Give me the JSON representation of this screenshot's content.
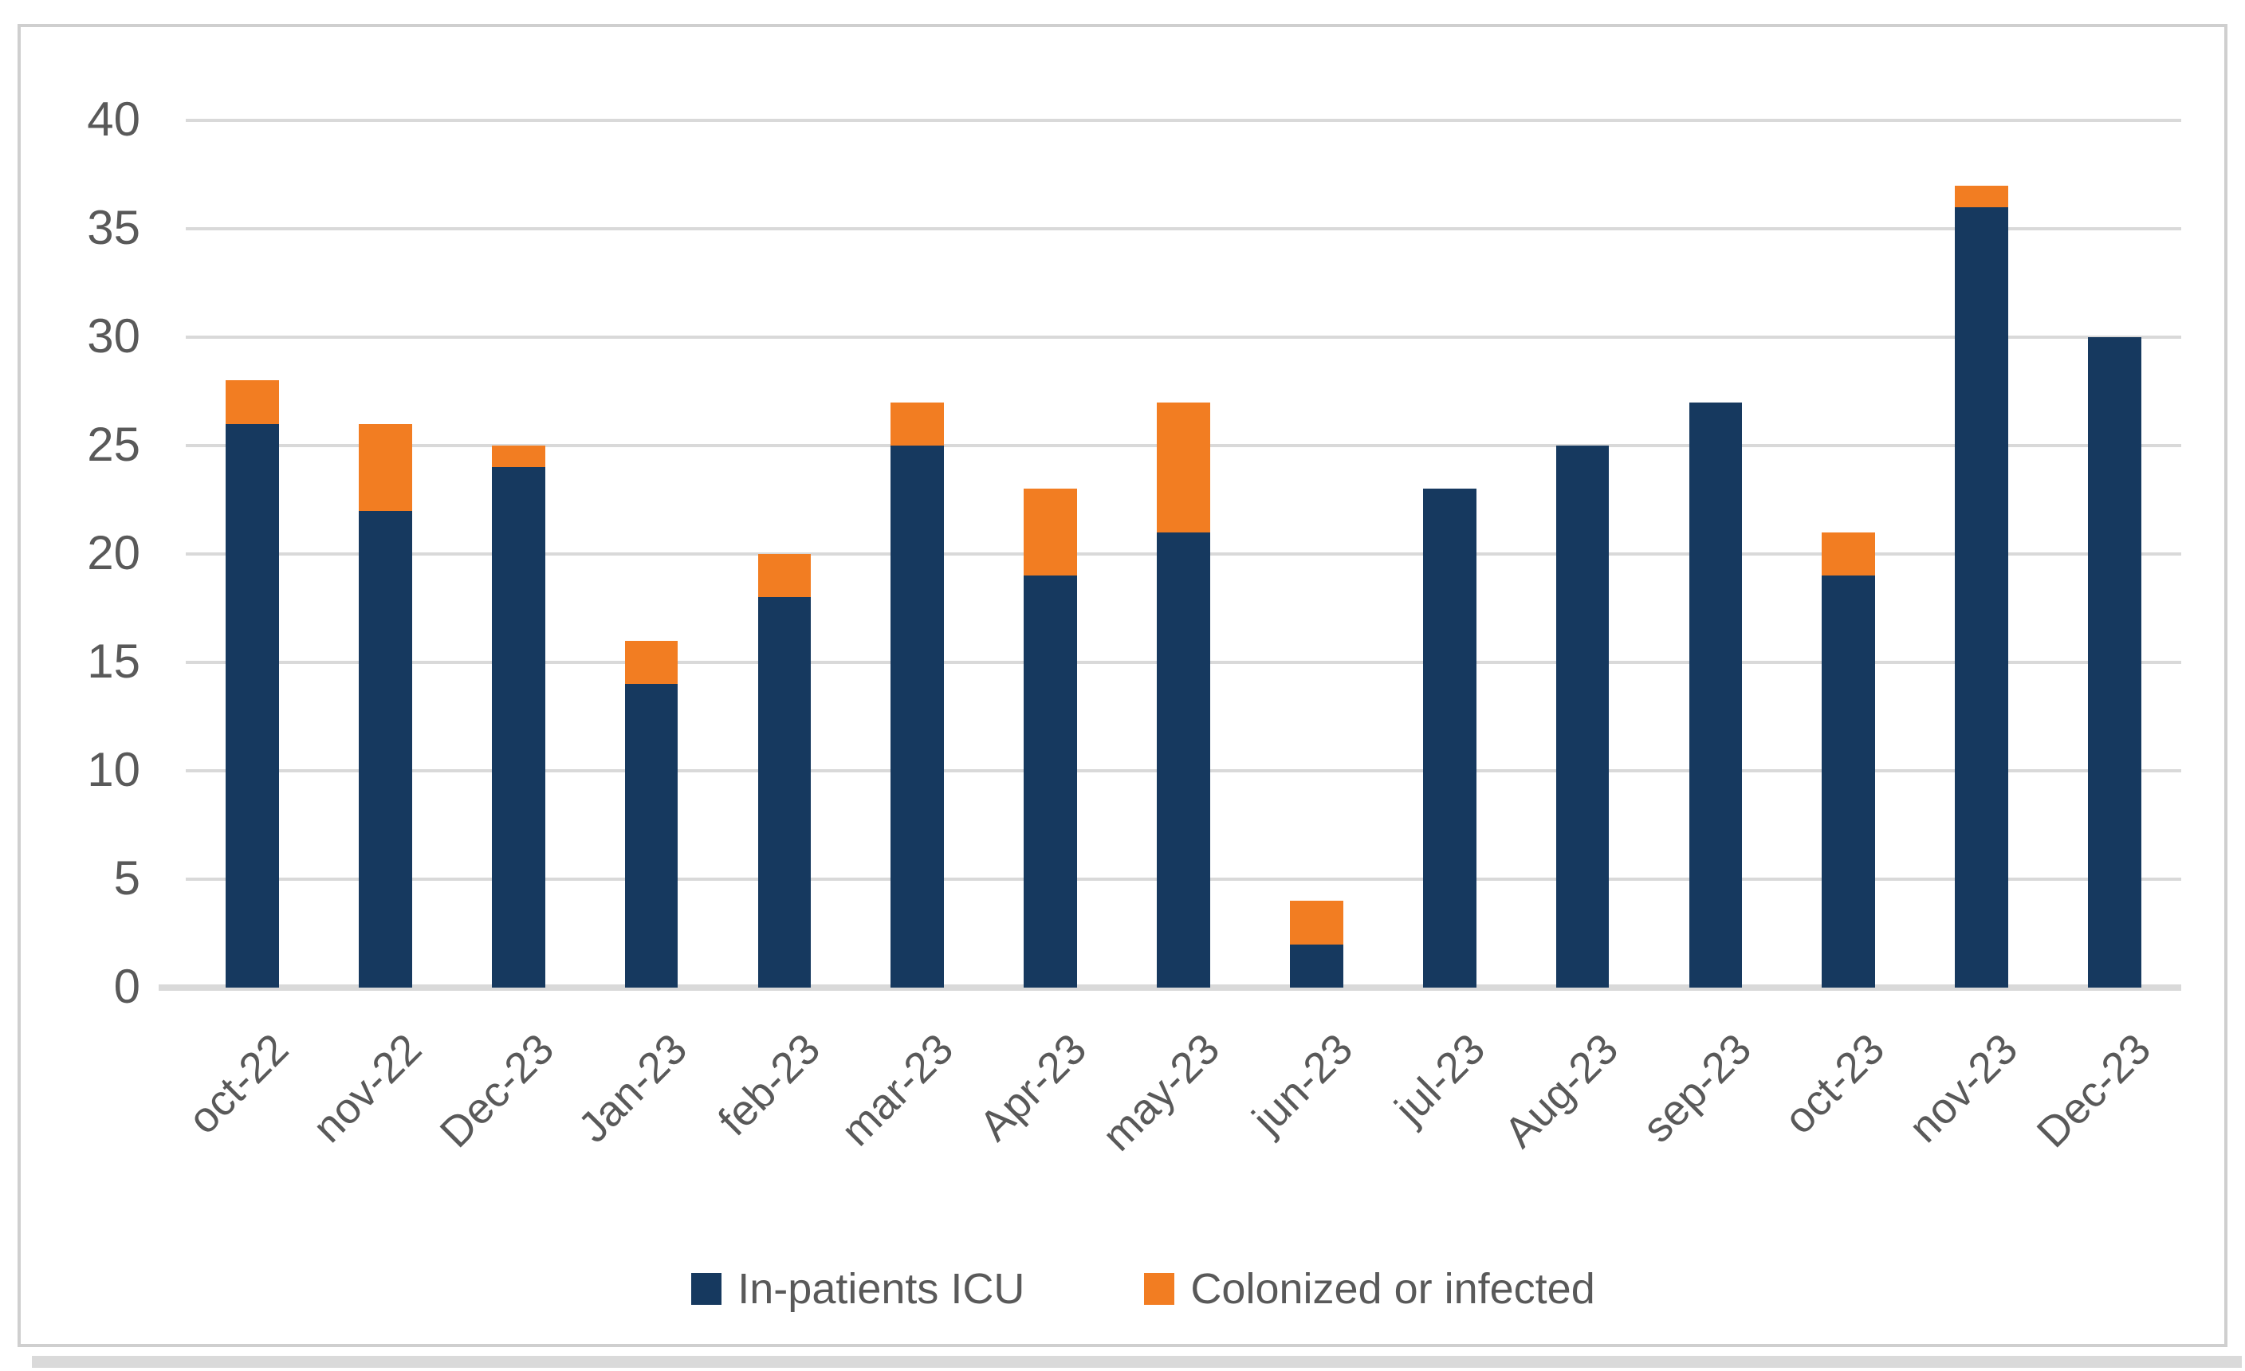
{
  "chart_data": {
    "type": "bar",
    "stacked": true,
    "title": "",
    "xlabel": "",
    "ylabel": "",
    "ylim": [
      0,
      40
    ],
    "y_ticks": [
      0,
      5,
      10,
      15,
      20,
      25,
      30,
      35,
      40
    ],
    "grid": "horizontal",
    "legend_position": "bottom",
    "categories": [
      "oct-22",
      "nov-22",
      "Dec-23",
      "Jan-23",
      "feb-23",
      "mar-23",
      "Apr-23",
      "may-23",
      "jun-23",
      "jul-23",
      "Aug-23",
      "sep-23",
      "oct-23",
      "nov-23",
      "Dec-23"
    ],
    "series": [
      {
        "name": "In-patients ICU",
        "color": "#16395f",
        "values": [
          26,
          22,
          24,
          14,
          18,
          25,
          19,
          21,
          2,
          23,
          25,
          27,
          19,
          36,
          30
        ]
      },
      {
        "name": "Colonized or infected",
        "color": "#f27d22",
        "values": [
          2,
          4,
          1,
          2,
          2,
          2,
          4,
          6,
          2,
          0,
          0,
          0,
          2,
          1,
          0
        ]
      }
    ],
    "totals": [
      28,
      26,
      25,
      16,
      20,
      27,
      23,
      27,
      4,
      23,
      25,
      27,
      21,
      37,
      30
    ]
  },
  "style": {
    "grid_color": "#d9d9d9",
    "axis_text_color": "#595959",
    "frame_border_color": "#cfcfcf",
    "shadow_color": "#dadada",
    "background": "#ffffff"
  }
}
